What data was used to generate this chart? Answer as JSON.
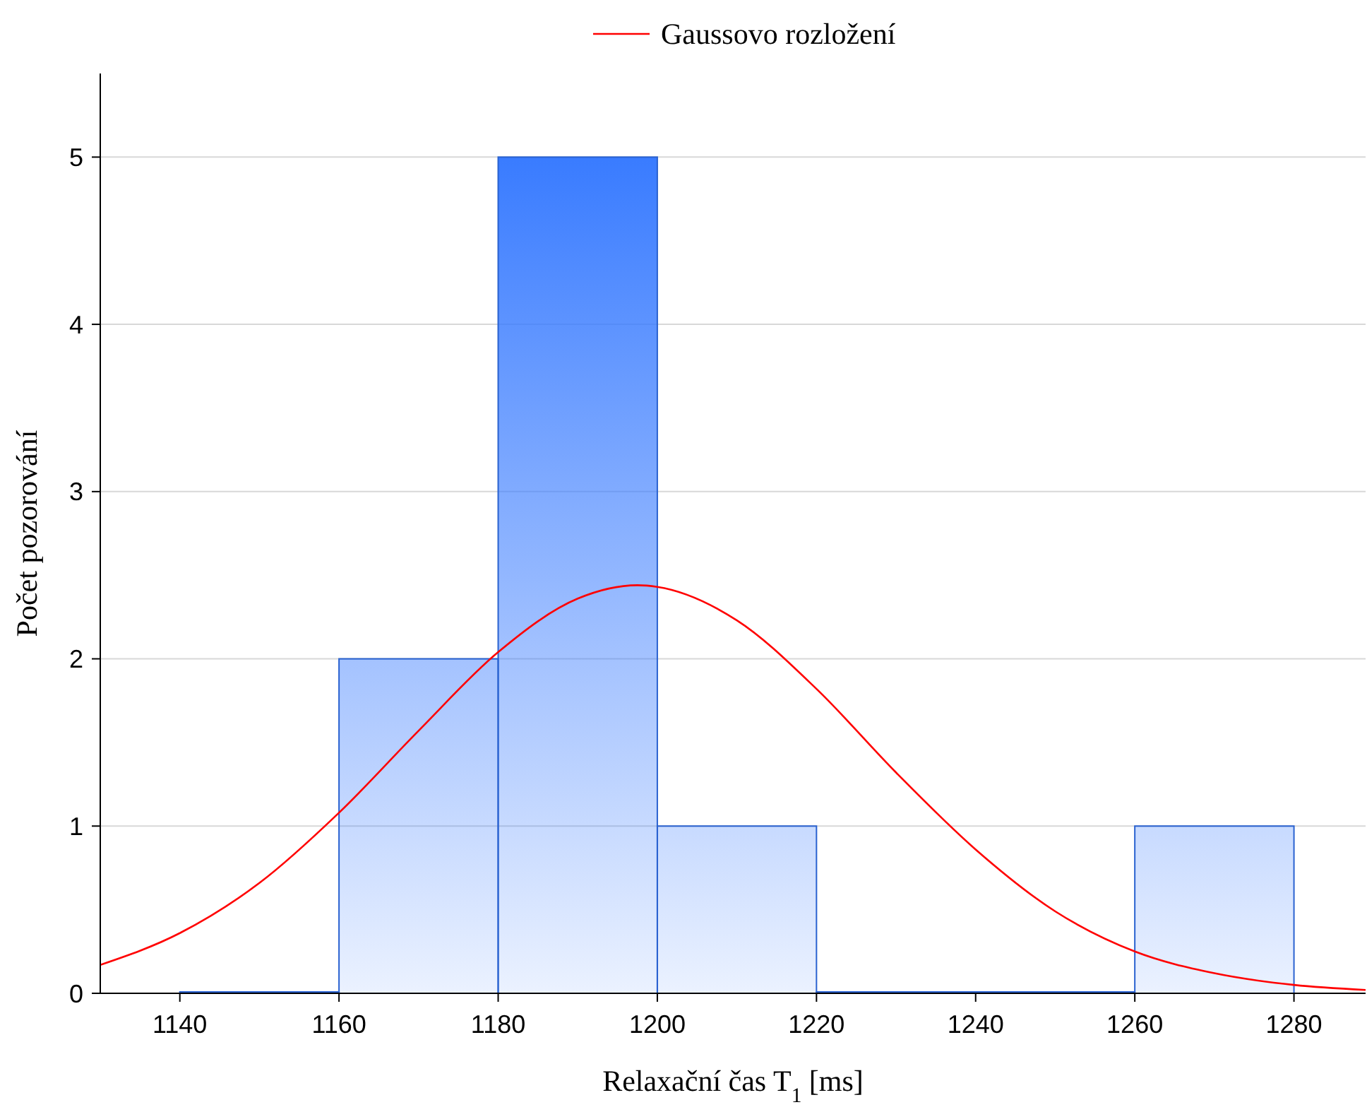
{
  "chart_data": {
    "type": "histogram",
    "xlabel": "Relaxační čas T$_{1}$ [ms]",
    "ylabel": "Počet pozorování",
    "xlim": [
      1130,
      1289
    ],
    "ylim": [
      0,
      5.5
    ],
    "xticks": [
      1140,
      1160,
      1180,
      1200,
      1220,
      1240,
      1260,
      1280
    ],
    "yticks": [
      0,
      1,
      2,
      3,
      4,
      5
    ],
    "grid": "y",
    "legend": "top",
    "series": [
      {
        "color": "#2a62d0",
        "bins": [
          1140,
          1160,
          1180,
          1200,
          1220,
          1240,
          1260,
          1280
        ],
        "values": [
          0,
          2,
          5,
          1,
          0,
          0,
          1
        ]
      },
      {
        "type": "line",
        "name": "Gaussovo rozložení",
        "color": "#ff0000",
        "x": [
          1130,
          1140,
          1150,
          1160,
          1170,
          1180,
          1190,
          1197.5,
          1200,
          1210,
          1220,
          1230,
          1240,
          1250,
          1260,
          1270,
          1280,
          1289
        ],
        "values": [
          0.17,
          0.36,
          0.66,
          1.08,
          1.57,
          2.04,
          2.36,
          2.44,
          2.43,
          2.23,
          1.82,
          1.32,
          0.86,
          0.49,
          0.25,
          0.12,
          0.05,
          0.02
        ]
      }
    ]
  }
}
